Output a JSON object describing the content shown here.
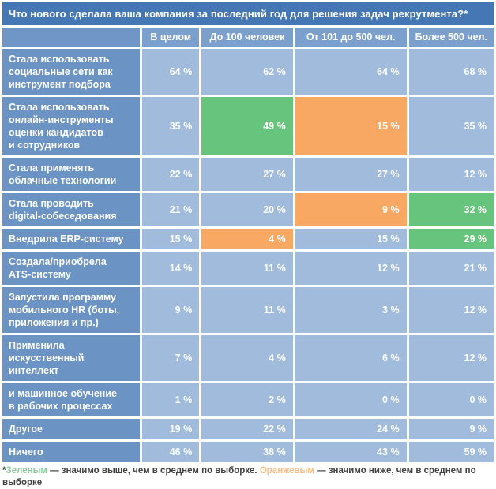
{
  "title": "Что нового сделала ваша компания за последний год для решения задач рекрутмента?*",
  "chart_data": {
    "type": "table",
    "unit": "%",
    "columns": [
      "В целом",
      "До 100 человек",
      "От 101 до 500 чел.",
      "Более 500 чел."
    ],
    "rows": [
      {
        "label": "Стала использовать\nсоциальные сети как\nинструмент подбора",
        "values": [
          64,
          62,
          64,
          68
        ],
        "highlights": [
          "",
          "",
          "",
          ""
        ]
      },
      {
        "label": "Стала использовать\nонлайн-инструменты\nоценки кандидатов\nи сотрудников",
        "values": [
          35,
          49,
          15,
          35
        ],
        "highlights": [
          "",
          "green",
          "orange",
          ""
        ]
      },
      {
        "label": "Стала применять\nоблачные технологии",
        "values": [
          22,
          27,
          27,
          12
        ],
        "highlights": [
          "",
          "",
          "",
          ""
        ]
      },
      {
        "label": "Стала проводить\ndigital-собеседования",
        "values": [
          21,
          20,
          9,
          32
        ],
        "highlights": [
          "",
          "",
          "orange",
          "green"
        ]
      },
      {
        "label": "Внедрила ERP-систему",
        "values": [
          15,
          4,
          15,
          29
        ],
        "highlights": [
          "",
          "orange",
          "",
          "green"
        ]
      },
      {
        "label": "Создала/приобрела\nATS-систему",
        "values": [
          14,
          11,
          12,
          21
        ],
        "highlights": [
          "",
          "",
          "",
          ""
        ]
      },
      {
        "label": "Запустила программу\nмобильного HR (боты,\nприложения и пр.)",
        "values": [
          9,
          11,
          3,
          12
        ],
        "highlights": [
          "",
          "",
          "",
          ""
        ]
      },
      {
        "label": "Применила\nискусственный\nинтеллект",
        "values": [
          7,
          4,
          6,
          12
        ],
        "highlights": [
          "",
          "",
          "",
          ""
        ]
      },
      {
        "label": "и машинное обучение\nв рабочих процессах",
        "values": [
          1,
          2,
          0,
          0
        ],
        "highlights": [
          "",
          "",
          "",
          ""
        ]
      },
      {
        "label": "Другое",
        "values": [
          19,
          22,
          24,
          9
        ],
        "highlights": [
          "",
          "",
          "",
          ""
        ]
      },
      {
        "label": "Ничего",
        "values": [
          46,
          38,
          43,
          59
        ],
        "highlights": [
          "",
          "",
          "",
          ""
        ]
      }
    ],
    "legend_position": "bottom",
    "grid": true
  },
  "footnote": {
    "marker": "*",
    "green_word": "Зеленым",
    "green_text": " — значимо выше, чем в среднем по выборке. ",
    "orange_word": "Оранжевым",
    "orange_text": " — значимо ниже, чем в среднем по выборке"
  },
  "colors": {
    "title_bg": "#4577b4",
    "corner_bg": "#7096c8",
    "header_bg": "#7ba0ce",
    "label_bg": "#6b93c4",
    "cell_bg": "#a0bbdc",
    "green": "#66c47c",
    "orange": "#f9a863",
    "value_text": "#ffffff",
    "footnote_text": "#404040",
    "footnote_green": "#8cc99e",
    "footnote_orange": "#f9bd8b"
  }
}
